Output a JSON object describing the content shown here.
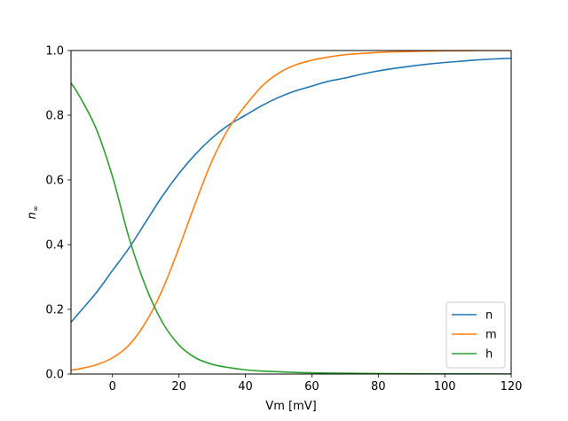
{
  "chart_data": {
    "type": "line",
    "title": "",
    "xlabel": "Vm [mV]",
    "ylabel_base": "n",
    "ylabel_sub": "∞",
    "xlim": [
      -12.5,
      120
    ],
    "ylim": [
      0,
      1
    ],
    "xticks": [
      0,
      20,
      40,
      60,
      80,
      100,
      120
    ],
    "yticks": [
      0.0,
      0.2,
      0.4,
      0.6,
      0.8,
      1.0
    ],
    "xtick_labels": [
      "0",
      "20",
      "40",
      "60",
      "80",
      "100",
      "120"
    ],
    "ytick_labels": [
      "0.0",
      "0.2",
      "0.4",
      "0.6",
      "0.8",
      "1.0"
    ],
    "grid": false,
    "legend_position": "bottom-right",
    "x": [
      -12.5,
      -10,
      -5,
      0,
      5,
      10,
      15,
      20,
      25,
      30,
      35,
      40,
      45,
      50,
      55,
      60,
      65,
      70,
      75,
      80,
      85,
      90,
      95,
      100,
      105,
      110,
      115,
      120
    ],
    "series": [
      {
        "name": "n",
        "color": "#1f77b4",
        "values": [
          0.16,
          0.19,
          0.25,
          0.32,
          0.39,
          0.47,
          0.55,
          0.62,
          0.68,
          0.73,
          0.77,
          0.8,
          0.83,
          0.855,
          0.875,
          0.89,
          0.905,
          0.915,
          0.927,
          0.937,
          0.945,
          0.952,
          0.958,
          0.963,
          0.967,
          0.971,
          0.974,
          0.976
        ]
      },
      {
        "name": "m",
        "color": "#ff7f0e",
        "values": [
          0.012,
          0.016,
          0.028,
          0.05,
          0.09,
          0.16,
          0.26,
          0.39,
          0.53,
          0.66,
          0.76,
          0.83,
          0.89,
          0.93,
          0.955,
          0.97,
          0.98,
          0.987,
          0.991,
          0.994,
          0.996,
          0.997,
          0.998,
          0.999,
          0.999,
          1.0,
          1.0,
          1.0
        ]
      },
      {
        "name": "h",
        "color": "#2ca02c",
        "values": [
          0.9,
          0.86,
          0.76,
          0.61,
          0.42,
          0.27,
          0.16,
          0.09,
          0.05,
          0.03,
          0.02,
          0.013,
          0.009,
          0.007,
          0.005,
          0.004,
          0.003,
          0.0025,
          0.002,
          0.0015,
          0.0012,
          0.001,
          0.0008,
          0.0006,
          0.0005,
          0.0004,
          0.0003,
          0.0002
        ]
      }
    ]
  }
}
